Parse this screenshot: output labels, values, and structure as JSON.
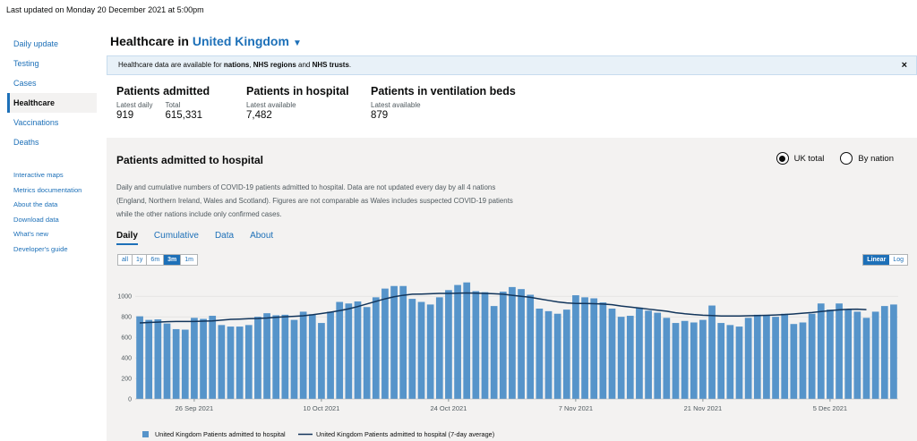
{
  "last_updated": "Last updated on Monday 20 December 2021 at 5:00pm",
  "nav": {
    "items": [
      {
        "label": "Daily update",
        "active": false
      },
      {
        "label": "Testing",
        "active": false
      },
      {
        "label": "Cases",
        "active": false
      },
      {
        "label": "Healthcare",
        "active": true
      },
      {
        "label": "Vaccinations",
        "active": false
      },
      {
        "label": "Deaths",
        "active": false
      }
    ],
    "secondary": [
      {
        "label": "Interactive maps"
      },
      {
        "label": "Metrics documentation"
      },
      {
        "label": "About the data"
      },
      {
        "label": "Download data"
      },
      {
        "label": "What's new"
      },
      {
        "label": "Developer's guide"
      }
    ]
  },
  "header": {
    "prefix": "Healthcare in",
    "location": "United Kingdom"
  },
  "banner": {
    "part1": "Healthcare data are available for ",
    "bold1": "nations",
    "part2": ", ",
    "bold2": "NHS regions",
    "part3": " and ",
    "bold3": "NHS trusts",
    "part4": ".",
    "close": "×"
  },
  "headlines": [
    {
      "title": "Patients admitted",
      "metrics": [
        {
          "label": "Latest daily",
          "value": "919"
        },
        {
          "label": "Total",
          "value": "615,331"
        }
      ]
    },
    {
      "title": "Patients in hospital",
      "metrics": [
        {
          "label": "Latest available",
          "value": "7,482"
        }
      ]
    },
    {
      "title": "Patients in ventilation beds",
      "metrics": [
        {
          "label": "Latest available",
          "value": "879"
        }
      ]
    }
  ],
  "card": {
    "title": "Patients admitted to hospital",
    "radio_uk": "UK total",
    "radio_nation": "By nation",
    "description": "Daily and cumulative numbers of COVID-19 patients admitted to hospital. Data are not updated every day by all 4 nations (England, Northern Ireland, Wales and Scotland). Figures are not comparable as Wales includes suspected COVID-19 patients while the other nations include only confirmed cases.",
    "tabs": [
      "Daily",
      "Cumulative",
      "Data",
      "About"
    ],
    "ranges": [
      "all",
      "1y",
      "6m",
      "3m",
      "1m"
    ],
    "active_range": "3m",
    "scales": [
      "Linear",
      "Log"
    ],
    "active_scale": "Linear"
  },
  "chart_data": {
    "type": "bar",
    "x_start": "2021-09-20",
    "x_tick_labels": [
      "26 Sep 2021",
      "10 Oct 2021",
      "24 Oct 2021",
      "7 Nov 2021",
      "21 Nov 2021",
      "5 Dec 2021"
    ],
    "x_tick_indices": [
      6,
      20,
      34,
      48,
      62,
      76
    ],
    "y_ticks": [
      0,
      200,
      400,
      600,
      800,
      1000
    ],
    "ylim": [
      0,
      1150
    ],
    "bar_color": "#5694ca",
    "line_color": "#12355b",
    "series": [
      {
        "name": "United Kingdom Patients admitted to hospital",
        "kind": "bar",
        "values": [
          805,
          770,
          775,
          735,
          680,
          675,
          790,
          780,
          810,
          720,
          705,
          705,
          720,
          800,
          835,
          815,
          820,
          770,
          850,
          825,
          740,
          850,
          945,
          930,
          950,
          895,
          990,
          1075,
          1100,
          1100,
          975,
          945,
          920,
          990,
          1060,
          1110,
          1135,
          1050,
          1040,
          905,
          1045,
          1090,
          1070,
          1015,
          880,
          855,
          830,
          870,
          1010,
          990,
          980,
          940,
          880,
          800,
          810,
          890,
          860,
          840,
          790,
          740,
          760,
          745,
          770,
          910,
          740,
          720,
          705,
          790,
          820,
          815,
          800,
          830,
          730,
          745,
          830,
          930,
          870,
          930,
          870,
          850,
          790,
          850,
          905,
          920
        ]
      },
      {
        "name": "United Kingdom Patients admitted to hospital (7-day average)",
        "kind": "line",
        "values": [
          740,
          745,
          748,
          752,
          755,
          755,
          755,
          758,
          760,
          768,
          775,
          778,
          782,
          784,
          788,
          795,
          800,
          805,
          810,
          820,
          832,
          845,
          860,
          878,
          900,
          925,
          950,
          975,
          995,
          1010,
          1020,
          1022,
          1025,
          1028,
          1028,
          1030,
          1032,
          1030,
          1028,
          1025,
          1020,
          1010,
          1000,
          990,
          975,
          960,
          945,
          935,
          930,
          930,
          928,
          925,
          918,
          905,
          895,
          885,
          875,
          865,
          855,
          840,
          830,
          822,
          816,
          812,
          808,
          808,
          808,
          810,
          812,
          815,
          818,
          822,
          828,
          835,
          842,
          852,
          860,
          868,
          873,
          874,
          870
        ]
      }
    ]
  }
}
